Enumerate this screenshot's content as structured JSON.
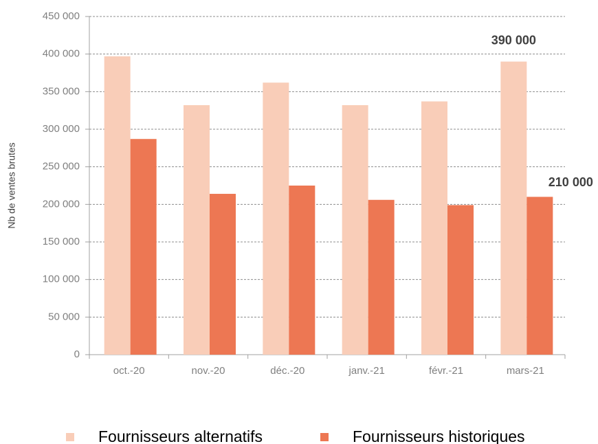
{
  "chart_data": {
    "type": "bar",
    "categories": [
      "oct.-20",
      "nov.-20",
      "déc.-20",
      "janv.-21",
      "févr.-21",
      "mars-21"
    ],
    "series": [
      {
        "name": "Fournisseurs alternatifs",
        "color": "#f9cdb8",
        "values": [
          397000,
          332000,
          362000,
          332000,
          337000,
          390000
        ],
        "value_labels": [
          null,
          null,
          null,
          null,
          null,
          "390 000"
        ]
      },
      {
        "name": "Fournisseurs historiques",
        "color": "#ed7753",
        "values": [
          287000,
          214000,
          225000,
          206000,
          199000,
          210000
        ],
        "value_labels": [
          null,
          null,
          null,
          null,
          null,
          "210 000"
        ]
      }
    ],
    "ylabel": "Nb de ventes brutes",
    "ylim": [
      0,
      450000
    ],
    "yticks": [
      0,
      {
        "value": 50000,
        "label": "50 000"
      },
      {
        "value": 100000,
        "label": "100 000"
      },
      {
        "value": 150000,
        "label": "150 000"
      },
      {
        "value": 200000,
        "label": "200 000"
      },
      {
        "value": 250000,
        "label": "250 000"
      },
      {
        "value": 300000,
        "label": "300 000"
      },
      {
        "value": 350000,
        "label": "350 000"
      },
      {
        "value": 400000,
        "label": "400 000"
      },
      {
        "value": 450000,
        "label": "450 000"
      }
    ],
    "grid": true,
    "legend": "bottom"
  }
}
